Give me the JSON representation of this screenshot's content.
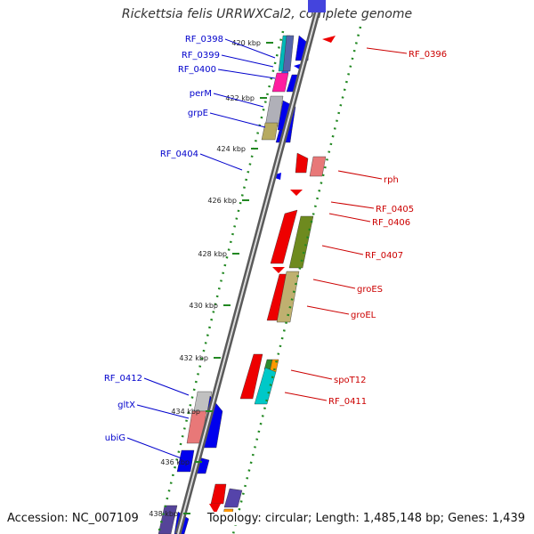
{
  "title": "Rickettsia felis URRWXCal2, complete genome",
  "footer": {
    "accession": "Accession: NC_007109",
    "summary": "Topology: circular; Length: 1,485,148 bp; Genes: 1,439"
  },
  "ticks": [
    "420 kbp",
    "422 kbp",
    "424 kbp",
    "426 kbp",
    "428 kbp",
    "430 kbp",
    "432 kbp",
    "434 kbp",
    "436 kbp",
    "438 kbp"
  ],
  "colors": {
    "forward_label": "#0000cc",
    "reverse_label": "#cc0000",
    "backbone": "#888888",
    "tick_mark": "#228822"
  },
  "left_labels": [
    "RF_0398",
    "RF_0399",
    "RF_0400",
    "perM",
    "grpE",
    "RF_0404",
    "RF_0412",
    "gltX",
    "ubiG"
  ],
  "right_labels": [
    "RF_0396",
    "rph",
    "RF_0405",
    "RF_0406",
    "RF_0407",
    "groES",
    "groEL",
    "spoT12",
    "RF_0411"
  ]
}
